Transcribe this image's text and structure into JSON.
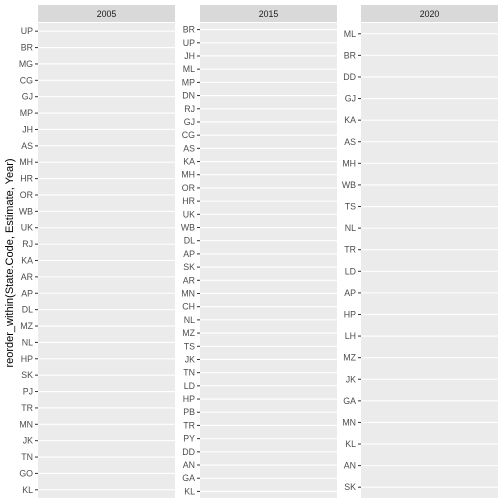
{
  "chart_data": {
    "type": "bar",
    "facet_by": "Year",
    "ylabel": "reorder_within(State.Code, Estimate, Year)",
    "xlabel": "",
    "grid": true,
    "panels": [
      {
        "year": "2005",
        "categories": [
          "UP",
          "BR",
          "MG",
          "CG",
          "GJ",
          "MP",
          "JH",
          "AS",
          "MH",
          "HR",
          "OR",
          "WB",
          "UK",
          "RJ",
          "KA",
          "AR",
          "AP",
          "DL",
          "MZ",
          "NL",
          "HP",
          "SK",
          "PJ",
          "TR",
          "MN",
          "JK",
          "TN",
          "GO",
          "KL"
        ]
      },
      {
        "year": "2015",
        "categories": [
          "BR",
          "UP",
          "JH",
          "ML",
          "MP",
          "DN",
          "RJ",
          "GJ",
          "CG",
          "AS",
          "KA",
          "MH",
          "OR",
          "HR",
          "UK",
          "WB",
          "DL",
          "AP",
          "SK",
          "AR",
          "MN",
          "CH",
          "NL",
          "MZ",
          "TS",
          "JK",
          "TN",
          "LD",
          "HP",
          "PB",
          "TR",
          "PY",
          "DD",
          "AN",
          "GA",
          "KL"
        ]
      },
      {
        "year": "2020",
        "categories": [
          "ML",
          "BR",
          "DD",
          "GJ",
          "KA",
          "AS",
          "MH",
          "WB",
          "TS",
          "NL",
          "TR",
          "LD",
          "AP",
          "HP",
          "LH",
          "MZ",
          "JK",
          "GA",
          "MN",
          "KL",
          "AN",
          "SK"
        ]
      }
    ]
  }
}
